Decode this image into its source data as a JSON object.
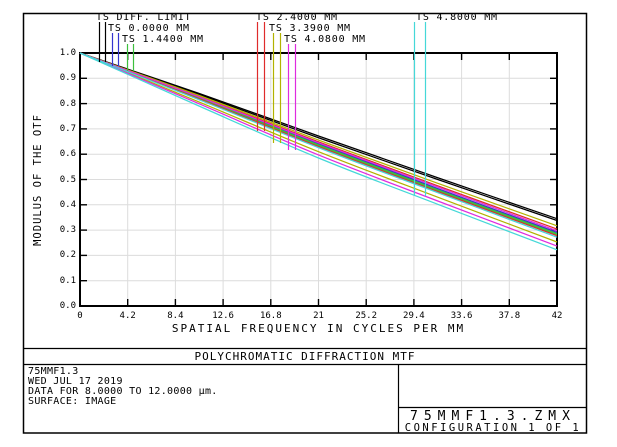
{
  "window": {
    "description": "Zemax polychromatic diffraction MTF plot"
  },
  "legend": {
    "entries": [
      {
        "label": "TS DIFF. LIMIT",
        "color": "#000000"
      },
      {
        "label": "TS 0.0000 MM",
        "color": "#3535cf"
      },
      {
        "label": "TS 1.4400 MM",
        "color": "#3cbf3c"
      },
      {
        "label": "TS 2.4000 MM",
        "color": "#df2b2b"
      },
      {
        "label": "TS 3.3900 MM",
        "color": "#b2b200"
      },
      {
        "label": "TS 4.0800 MM",
        "color": "#df2bdf"
      },
      {
        "label": "TS 4.8000 MM",
        "color": "#45d8d8"
      }
    ]
  },
  "chart_data": {
    "type": "line",
    "title": "POLYCHROMATIC DIFFRACTION MTF",
    "xlabel": "SPATIAL FREQUENCY IN CYCLES PER MM",
    "ylabel": "MODULUS OF THE OTF",
    "xlim": [
      0,
      42
    ],
    "ylim": [
      0,
      1
    ],
    "grid": true,
    "x_ticks": [
      0,
      4.2,
      8.4,
      12.6,
      16.8,
      21,
      25.2,
      29.4,
      33.6,
      37.8,
      42
    ],
    "x_tick_labels": [
      "0",
      "4.2",
      "8.4",
      "12.6",
      "16.8",
      "21",
      "25.2",
      "29.4",
      "33.6",
      "37.8",
      "42"
    ],
    "y_ticks": [
      0,
      0.1,
      0.2,
      0.3,
      0.4,
      0.5,
      0.6,
      0.7,
      0.8,
      0.9,
      1.0
    ],
    "y_tick_labels": [
      "0.0",
      "0.1",
      "0.2",
      "0.3",
      "0.4",
      "0.5",
      "0.6",
      "0.7",
      "0.8",
      "0.9",
      "1.0"
    ],
    "x": [
      0,
      10.5,
      21,
      31.5,
      42
    ],
    "series": [
      {
        "name": "TS DIFF. LIMIT (S)",
        "color": "#000000",
        "values": [
          1.0,
          0.84,
          0.672,
          0.507,
          0.345
        ]
      },
      {
        "name": "TS DIFF. LIMIT (T)",
        "color": "#000000",
        "values": [
          1.0,
          0.836,
          0.665,
          0.5,
          0.338
        ]
      },
      {
        "name": "TS 0.0000 MM (S)",
        "color": "#3535cf",
        "values": [
          1.0,
          0.824,
          0.642,
          0.464,
          0.291
        ]
      },
      {
        "name": "TS 0.0000 MM (T)",
        "color": "#3535cf",
        "values": [
          1.0,
          0.823,
          0.64,
          0.462,
          0.289
        ]
      },
      {
        "name": "TS 1.4400 MM (S)",
        "color": "#3cbf3c",
        "values": [
          1.0,
          0.822,
          0.637,
          0.459,
          0.286
        ]
      },
      {
        "name": "TS 1.4400 MM (T)",
        "color": "#3cbf3c",
        "values": [
          1.0,
          0.82,
          0.633,
          0.455,
          0.282
        ]
      },
      {
        "name": "TS 2.4000 MM (S)",
        "color": "#df2b2b",
        "values": [
          1.0,
          0.828,
          0.649,
          0.475,
          0.304
        ]
      },
      {
        "name": "TS 2.4000 MM (T)",
        "color": "#df2b2b",
        "values": [
          1.0,
          0.818,
          0.63,
          0.452,
          0.278
        ]
      },
      {
        "name": "TS 3.3900 MM (S)",
        "color": "#b2b200",
        "values": [
          1.0,
          0.832,
          0.656,
          0.485,
          0.317
        ]
      },
      {
        "name": "TS 3.3900 MM (T)",
        "color": "#b2b200",
        "values": [
          1.0,
          0.806,
          0.61,
          0.43,
          0.253
        ]
      },
      {
        "name": "TS 4.0800 MM (S)",
        "color": "#df2bdf",
        "values": [
          1.0,
          0.826,
          0.645,
          0.47,
          0.297
        ]
      },
      {
        "name": "TS 4.0800 MM (T)",
        "color": "#df2bdf",
        "values": [
          1.0,
          0.799,
          0.597,
          0.415,
          0.237
        ]
      },
      {
        "name": "TS 4.8000 MM (S)",
        "color": "#45d8d8",
        "values": [
          1.0,
          0.815,
          0.626,
          0.448,
          0.272
        ]
      },
      {
        "name": "TS 4.8000 MM (T)",
        "color": "#45d8d8",
        "values": [
          1.0,
          0.79,
          0.585,
          0.402,
          0.222
        ]
      }
    ]
  },
  "info": {
    "lens": "75MMF1.3",
    "date": "WED JUL 17 2019",
    "data_range": "DATA FOR 8.0000 TO 12.0000 µm.",
    "surface": "SURFACE: IMAGE",
    "file": "75MMF1.3.ZMX",
    "configuration": "CONFIGURATION 1 OF 1"
  },
  "colors": {
    "frame": "#000000",
    "grid": "#dcdcdc",
    "background": "#ffffff"
  }
}
